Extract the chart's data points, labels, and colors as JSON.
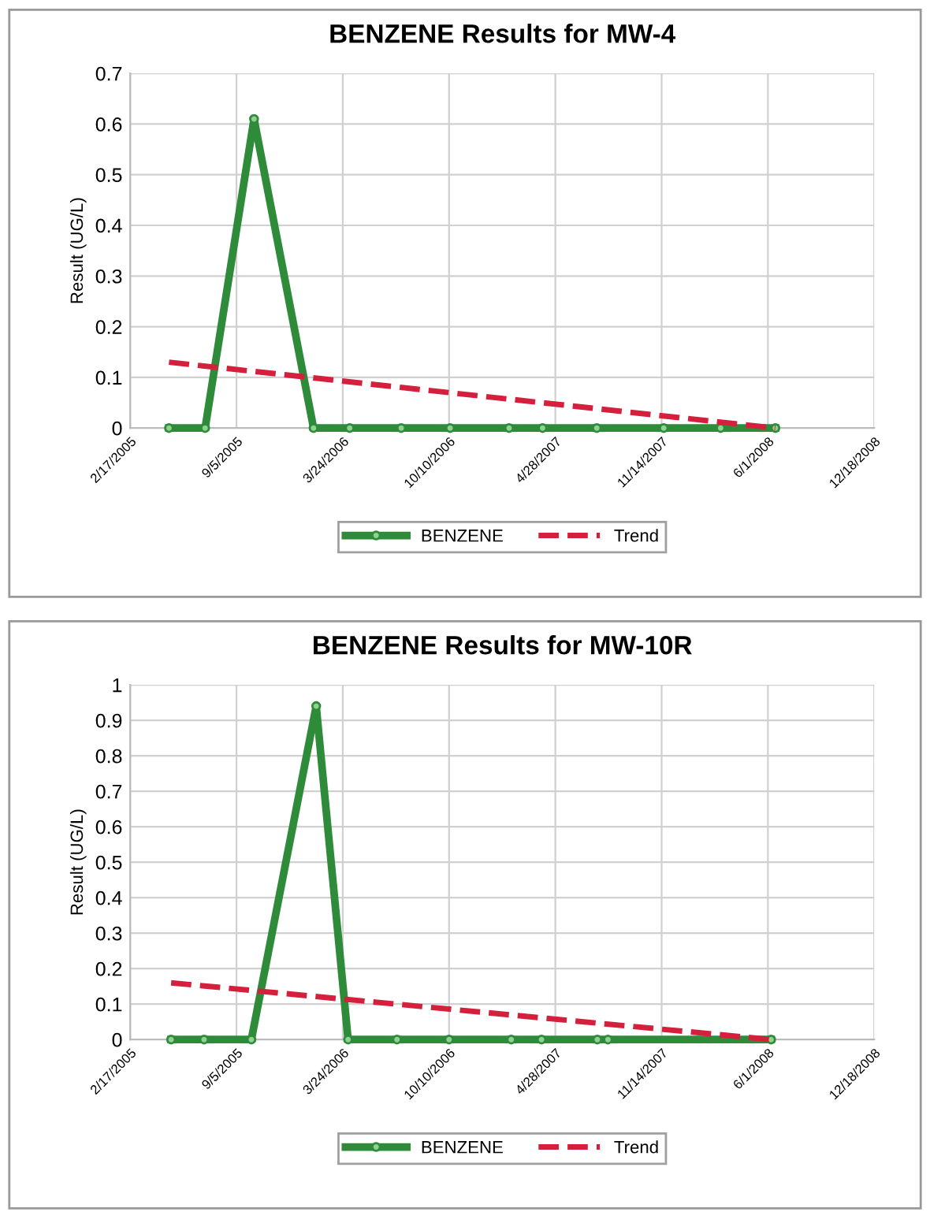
{
  "chart_data": [
    {
      "type": "line",
      "title": "BENZENE Results for MW-4",
      "ylabel": "Result (UG/L)",
      "xlim": [
        "2005-02-17",
        "2008-12-18"
      ],
      "ylim": [
        0,
        0.7
      ],
      "xticks": [
        {
          "value": "2005-02-17",
          "label": "2/17/2005"
        },
        {
          "value": "2005-09-05",
          "label": "9/5/2005"
        },
        {
          "value": "2006-03-24",
          "label": "3/24/2006"
        },
        {
          "value": "2006-10-10",
          "label": "10/10/2006"
        },
        {
          "value": "2007-04-28",
          "label": "4/28/2007"
        },
        {
          "value": "2007-11-14",
          "label": "11/14/2007"
        },
        {
          "value": "2008-06-01",
          "label": "6/1/2008"
        },
        {
          "value": "2008-12-18",
          "label": "12/18/2008"
        }
      ],
      "yticks": [
        0,
        0.1,
        0.2,
        0.3,
        0.4,
        0.5,
        0.6,
        0.7
      ],
      "grid": true,
      "legend": "bottom",
      "series": [
        {
          "name": "BENZENE",
          "color": "#2e8b3a",
          "marker": "circle",
          "line_style": "solid",
          "x": [
            "2005-05-01",
            "2005-07-08",
            "2005-10-08",
            "2006-01-28",
            "2006-04-06",
            "2006-07-12",
            "2006-10-12",
            "2007-01-31",
            "2007-04-04",
            "2007-07-15",
            "2007-11-18",
            "2008-03-04",
            "2008-06-15"
          ],
          "values": [
            0,
            0,
            0.61,
            0,
            0,
            0,
            0,
            0,
            0,
            0,
            0,
            0,
            0
          ]
        },
        {
          "name": "Trend",
          "color": "#d4203c",
          "marker": "none",
          "line_style": "dashed",
          "x": [
            "2005-05-01",
            "2008-06-15"
          ],
          "values": [
            0.13,
            0
          ]
        }
      ]
    },
    {
      "type": "line",
      "title": "BENZENE Results for MW-10R",
      "ylabel": "Result (UG/L)",
      "xlim": [
        "2005-02-17",
        "2008-12-18"
      ],
      "ylim": [
        0,
        1
      ],
      "xticks": [
        {
          "value": "2005-02-17",
          "label": "2/17/2005"
        },
        {
          "value": "2005-09-05",
          "label": "9/5/2005"
        },
        {
          "value": "2006-03-24",
          "label": "3/24/2006"
        },
        {
          "value": "2006-10-10",
          "label": "10/10/2006"
        },
        {
          "value": "2007-04-28",
          "label": "4/28/2007"
        },
        {
          "value": "2007-11-14",
          "label": "11/14/2007"
        },
        {
          "value": "2008-06-01",
          "label": "6/1/2008"
        },
        {
          "value": "2008-12-18",
          "label": "12/18/2008"
        }
      ],
      "yticks": [
        0,
        0.1,
        0.2,
        0.3,
        0.4,
        0.5,
        0.6,
        0.7,
        0.8,
        0.9,
        1
      ],
      "grid": true,
      "legend": "bottom",
      "series": [
        {
          "name": "BENZENE",
          "color": "#2e8b3a",
          "marker": "circle",
          "line_style": "solid",
          "x": [
            "2005-05-05",
            "2005-07-06",
            "2005-10-03",
            "2006-02-02",
            "2006-04-03",
            "2006-07-04",
            "2006-10-10",
            "2007-02-04",
            "2007-04-02",
            "2007-07-16",
            "2007-08-05",
            "2008-06-07"
          ],
          "values": [
            0,
            0,
            0,
            0.94,
            0,
            0,
            0,
            0,
            0,
            0,
            0,
            0
          ]
        },
        {
          "name": "Trend",
          "color": "#d4203c",
          "marker": "none",
          "line_style": "dashed",
          "x": [
            "2005-05-05",
            "2008-06-07"
          ],
          "values": [
            0.16,
            0
          ]
        }
      ]
    }
  ]
}
